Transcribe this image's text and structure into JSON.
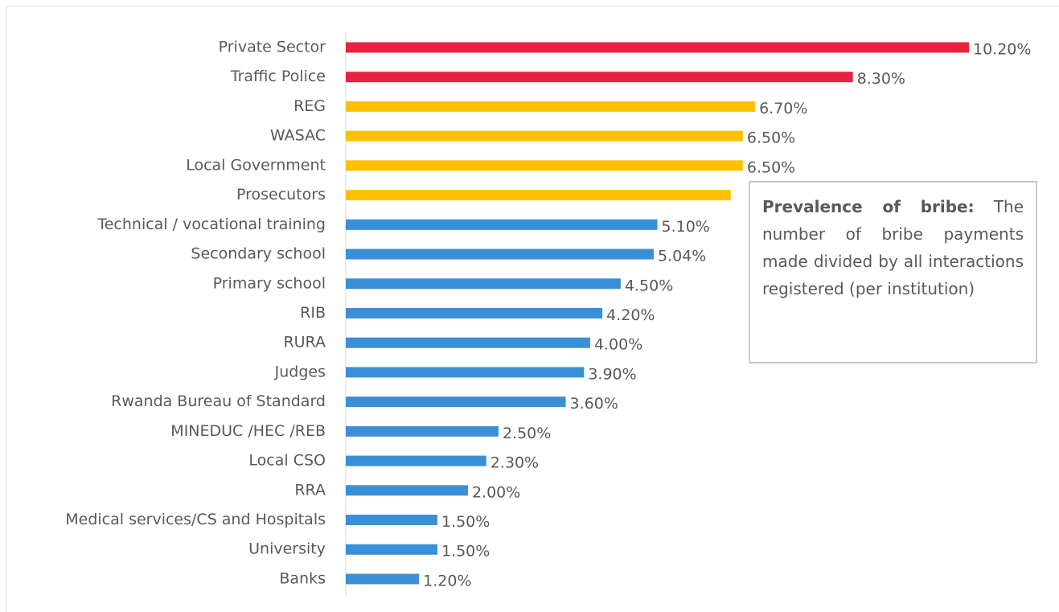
{
  "chart_data": {
    "type": "bar",
    "orientation": "horizontal",
    "categories": [
      "Private Sector",
      "Traffic Police",
      "REG",
      "WASAC",
      "Local Government",
      "Prosecutors",
      "Technical / vocational training",
      "Secondary school",
      "Primary school",
      "RIB",
      "RURA",
      "Judges",
      "Rwanda Bureau of Standard",
      "MINEDUC /HEC /REB",
      "Local CSO",
      "RRA",
      "Medical services/CS and Hospitals",
      "University",
      "Banks"
    ],
    "values": [
      10.2,
      8.3,
      6.7,
      6.5,
      6.5,
      6.3,
      5.1,
      5.04,
      4.5,
      4.2,
      4.0,
      3.9,
      3.6,
      2.5,
      2.3,
      2.0,
      1.5,
      1.5,
      1.2
    ],
    "value_labels": [
      "10.20%",
      "8.30%",
      "6.70%",
      "6.50%",
      "6.50%",
      null,
      "5.10%",
      "5.04%",
      "4.50%",
      "4.20%",
      "4.00%",
      "3.90%",
      "3.60%",
      "2.50%",
      "2.30%",
      "2.00%",
      "1.50%",
      "1.50%",
      "1.20%"
    ],
    "colors": [
      "#e8213f",
      "#e8213f",
      "#ffc000",
      "#ffc000",
      "#ffc000",
      "#ffc000",
      "#3a8fd9",
      "#3a8fd9",
      "#3a8fd9",
      "#3a8fd9",
      "#3a8fd9",
      "#3a8fd9",
      "#3a8fd9",
      "#3a8fd9",
      "#3a8fd9",
      "#3a8fd9",
      "#3a8fd9",
      "#3a8fd9",
      "#3a8fd9"
    ],
    "xlim": [
      0,
      10.2
    ],
    "annotation": {
      "title": "Prevalence of bribe:",
      "text": "The number of bribe payments made divided by all interactions registered (per institution)"
    }
  }
}
